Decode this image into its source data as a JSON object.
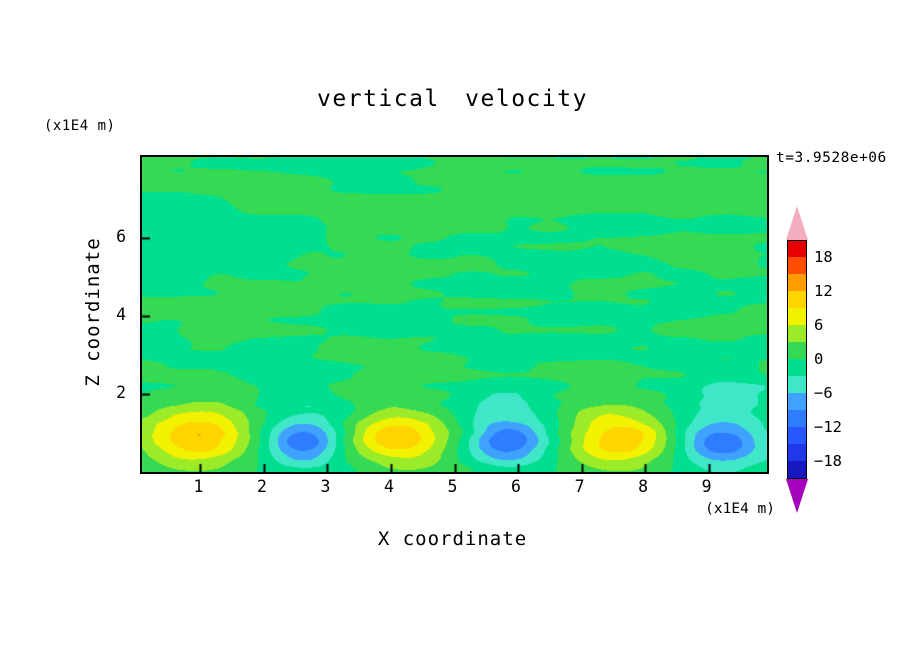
{
  "chart": {
    "type": "contour",
    "title": "vertical velocity",
    "timestamp": "t=3.9528e+06",
    "xlabel": "X coordinate",
    "ylabel": "Z coordinate",
    "x_unit": "(x1E4 m)",
    "y_unit": "(x1E4 m)",
    "xlim": [
      0.08,
      9.92
    ],
    "ylim": [
      0,
      8.08
    ],
    "x_ticks": [
      1,
      2,
      3,
      4,
      5,
      6,
      7,
      8,
      9
    ],
    "y_ticks": [
      2,
      4,
      6
    ],
    "vmin": -21,
    "vmax": 21,
    "level_step": 3,
    "colorbar_labels": [
      18,
      12,
      6,
      0,
      -6,
      -12,
      -18
    ],
    "colors": [
      "#1818C0",
      "#2038E8",
      "#2858FF",
      "#2E7CFF",
      "#3FA2FF",
      "#40E6C8",
      "#00DF8F",
      "#35D954",
      "#9CEB28",
      "#F2F200",
      "#FFD400",
      "#FF9C00",
      "#FF4E00",
      "#E60000"
    ],
    "over_color": "#F2AEBE",
    "under_color": "#A500BE",
    "noise_amp": 2.75,
    "cells": [
      {
        "x": 0.95,
        "z": 0.85,
        "amp": 10.0,
        "rx": 0.8,
        "rz": 0.62
      },
      {
        "x": 2.62,
        "z": 0.8,
        "amp": -8.8,
        "rx": 0.55,
        "rz": 0.5
      },
      {
        "x": 4.15,
        "z": 0.85,
        "amp": 10.0,
        "rx": 0.8,
        "rz": 0.62
      },
      {
        "x": 5.85,
        "z": 0.8,
        "amp": -8.8,
        "rx": 0.55,
        "rz": 0.5
      },
      {
        "x": 7.6,
        "z": 0.85,
        "amp": 10.0,
        "rx": 0.8,
        "rz": 0.62
      },
      {
        "x": 9.2,
        "z": 0.8,
        "amp": -8.8,
        "rx": 0.6,
        "rz": 0.5
      }
    ],
    "plumes": [
      {
        "x": 0.95,
        "z": 1.1,
        "amp": 2.2,
        "rx": 1.0,
        "rz": 1.5
      },
      {
        "x": 2.62,
        "z": 1.2,
        "amp": -3.0,
        "rx": 0.8,
        "rz": 1.6
      },
      {
        "x": 4.15,
        "z": 1.1,
        "amp": 2.2,
        "rx": 1.0,
        "rz": 1.5
      },
      {
        "x": 5.85,
        "z": 1.2,
        "amp": -3.0,
        "rx": 0.8,
        "rz": 1.6
      },
      {
        "x": 7.6,
        "z": 1.1,
        "amp": 2.2,
        "rx": 1.0,
        "rz": 1.5
      },
      {
        "x": 9.2,
        "z": 1.2,
        "amp": -3.0,
        "rx": 0.9,
        "rz": 1.6
      }
    ]
  }
}
